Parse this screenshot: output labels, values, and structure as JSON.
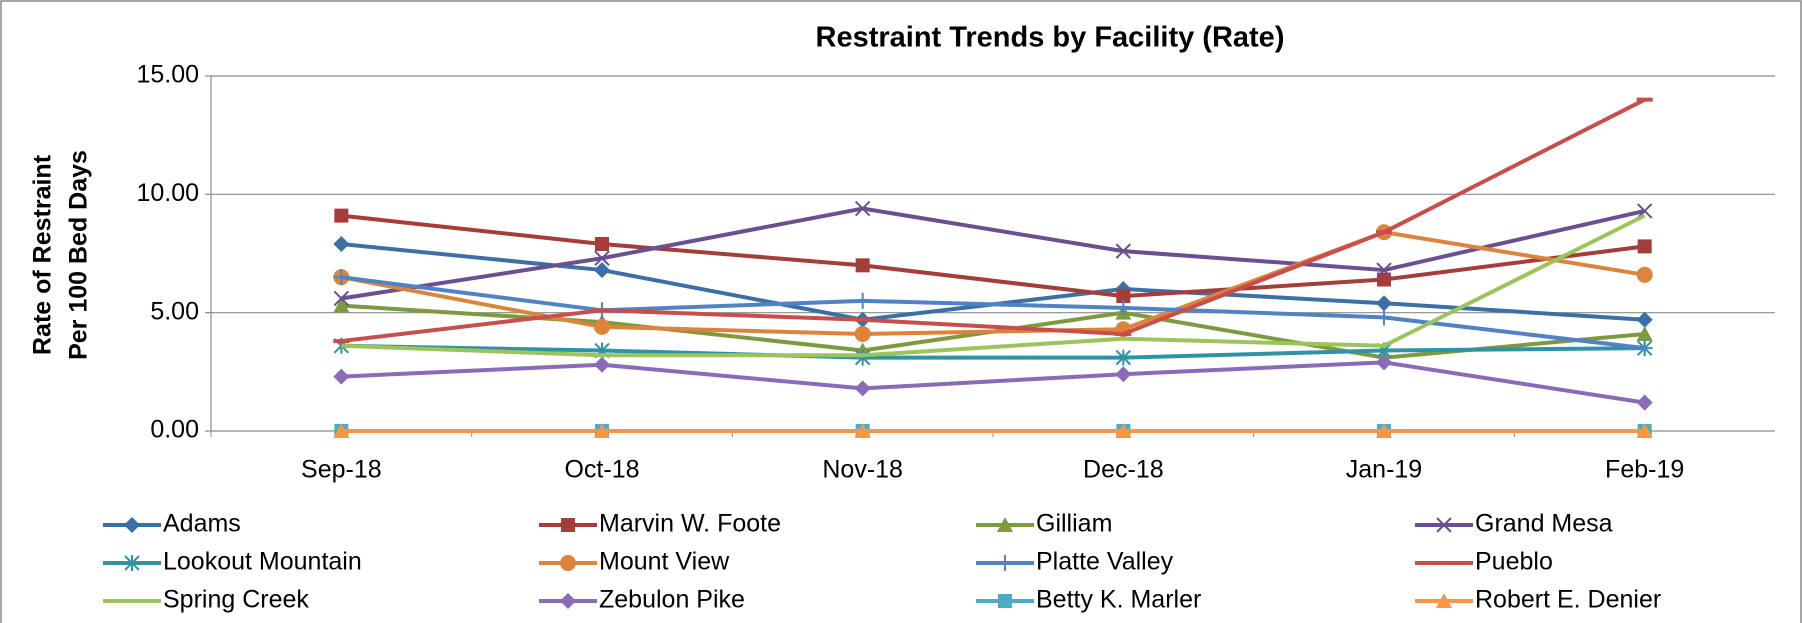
{
  "chart_data": {
    "type": "line",
    "title": "Restraint Trends by Facility (Rate)",
    "y_label": [
      "Rate of Restraint",
      "Per 100 Bed Days"
    ],
    "categories": [
      "Sep-18",
      "Oct-18",
      "Nov-18",
      "Dec-18",
      "Jan-19",
      "Feb-19"
    ],
    "ylim": [
      0,
      15
    ],
    "yticks": [
      {
        "value": 0,
        "label": "0.00"
      },
      {
        "value": 5,
        "label": "5.00"
      },
      {
        "value": 10,
        "label": "10.00"
      },
      {
        "value": 15,
        "label": "15.00"
      }
    ],
    "grid": true,
    "series": [
      {
        "name": "Adams",
        "color": "#3c6fa6",
        "marker": "diamond",
        "values": [
          7.9,
          6.8,
          4.7,
          6.0,
          5.4,
          4.7
        ]
      },
      {
        "name": "Marvin W. Foote",
        "color": "#a53d3b",
        "marker": "square",
        "values": [
          9.1,
          7.9,
          7.0,
          5.7,
          6.4,
          7.8
        ]
      },
      {
        "name": "Gilliam",
        "color": "#7e9a3e",
        "marker": "triangle",
        "values": [
          5.3,
          4.6,
          3.4,
          5.0,
          3.1,
          4.1
        ]
      },
      {
        "name": "Grand Mesa",
        "color": "#6a5090",
        "marker": "x",
        "values": [
          5.6,
          7.3,
          9.4,
          7.6,
          6.8,
          9.3
        ]
      },
      {
        "name": "Lookout Mountain",
        "color": "#2f93a6",
        "marker": "star",
        "values": [
          3.6,
          3.4,
          3.1,
          3.1,
          3.4,
          3.5
        ]
      },
      {
        "name": "Mount View",
        "color": "#dc843c",
        "marker": "circle",
        "values": [
          6.5,
          4.4,
          4.1,
          4.3,
          8.4,
          6.6
        ]
      },
      {
        "name": "Platte Valley",
        "color": "#4f83c4",
        "marker": "plus",
        "values": [
          6.5,
          5.1,
          5.5,
          5.2,
          4.8,
          3.5
        ]
      },
      {
        "name": "Pueblo",
        "color": "#c84e4c",
        "marker": "dash",
        "values": [
          3.8,
          5.1,
          4.7,
          4.1,
          8.4,
          14.0
        ]
      },
      {
        "name": "Spring Creek",
        "color": "#9bc55b",
        "marker": "none",
        "values": [
          3.6,
          3.2,
          3.2,
          3.9,
          3.6,
          9.1
        ]
      },
      {
        "name": "Zebulon Pike",
        "color": "#8a6bb8",
        "marker": "diamond",
        "values": [
          2.3,
          2.8,
          1.8,
          2.4,
          2.9,
          1.2
        ]
      },
      {
        "name": "Betty K. Marler",
        "color": "#4bacc6",
        "marker": "square",
        "values": [
          0,
          0,
          0,
          0,
          0,
          0
        ]
      },
      {
        "name": "Robert E. Denier",
        "color": "#f79646",
        "marker": "triangle",
        "values": [
          0,
          0,
          0,
          0,
          0,
          0
        ]
      }
    ]
  }
}
